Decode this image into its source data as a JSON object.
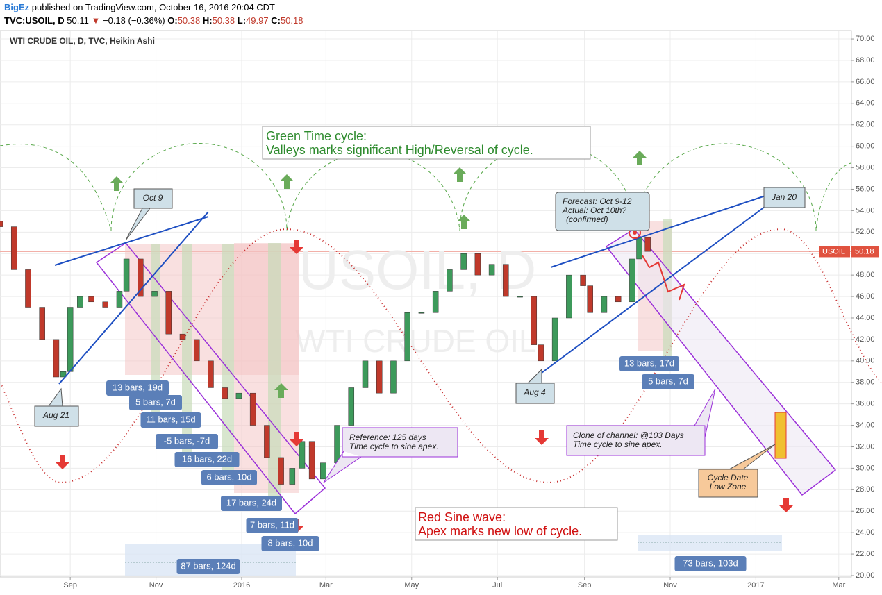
{
  "header": {
    "author": "BigEz",
    "published": "published on TradingView.com, October 16, 2016 20:04 CDT",
    "symbol": "TVC:USOIL, D",
    "last": 50.11,
    "change": "−0.18 (−0.36%)",
    "open_label": "O:",
    "open": 50.38,
    "high_label": "H:",
    "high": 50.38,
    "low_label": "L:",
    "low": 49.97,
    "close_label": "C:",
    "close": 50.18
  },
  "chart_data": {
    "type": "candlestick",
    "title": "WTI CRUDE OIL, D, TVC, Heikin Ashi",
    "watermark": [
      "USOIL, D",
      "WTI CRUDE OIL"
    ],
    "up_color": "#3d9a5b",
    "down_color": "#c0392b",
    "grid": true,
    "last_price_label": "USOIL",
    "last_price": 50.18,
    "xlim": [
      -50,
      556
    ],
    "ylim": [
      19.87,
      70.78
    ],
    "xticks": [
      {
        "value": 0,
        "label": "Sep"
      },
      {
        "value": 61,
        "label": "Nov"
      },
      {
        "value": 122,
        "label": "2016"
      },
      {
        "value": 182,
        "label": "Mar"
      },
      {
        "value": 243,
        "label": "May"
      },
      {
        "value": 304,
        "label": "Jul"
      },
      {
        "value": 366,
        "label": "Sep"
      },
      {
        "value": 427,
        "label": "Nov"
      },
      {
        "value": 488,
        "label": "2017"
      },
      {
        "value": 547,
        "label": "Mar"
      }
    ],
    "yticks": [
      {
        "value": 20,
        "label": "20.00"
      },
      {
        "value": 22,
        "label": "22.00"
      },
      {
        "value": 24,
        "label": "24.00"
      },
      {
        "value": 26,
        "label": "26.00"
      },
      {
        "value": 28,
        "label": "28.00"
      },
      {
        "value": 30,
        "label": "30.00"
      },
      {
        "value": 32,
        "label": "32.00"
      },
      {
        "value": 34,
        "label": "34.00"
      },
      {
        "value": 36,
        "label": "36.00"
      },
      {
        "value": 38,
        "label": "38.00"
      },
      {
        "value": 40,
        "label": "40.00"
      },
      {
        "value": 42,
        "label": "42.00"
      },
      {
        "value": 44,
        "label": "44.00"
      },
      {
        "value": 46,
        "label": "46.00"
      },
      {
        "value": 48,
        "label": "48.00"
      },
      {
        "value": 50,
        "label": "50.00"
      },
      {
        "value": 52,
        "label": "52.00"
      },
      {
        "value": 54,
        "label": "54.00"
      },
      {
        "value": 56,
        "label": "56.00"
      },
      {
        "value": 58,
        "label": "58.00"
      },
      {
        "value": 60,
        "label": "60.00"
      },
      {
        "value": 62,
        "label": "62.00"
      },
      {
        "value": 64,
        "label": "64.00"
      },
      {
        "value": 66,
        "label": "66.00"
      },
      {
        "value": 68,
        "label": "68.00"
      },
      {
        "value": 70,
        "label": "70.00"
      }
    ],
    "series": [
      {
        "name": "USOIL",
        "x": [
          -50,
          -40,
          -30,
          -20,
          -10,
          -5,
          0,
          7,
          15,
          25,
          35,
          40,
          50,
          60,
          70,
          80,
          90,
          100,
          110,
          120,
          130,
          140,
          150,
          158,
          165,
          172,
          180,
          190,
          200,
          210,
          220,
          230,
          240,
          250,
          260,
          270,
          280,
          290,
          300,
          310,
          320,
          330,
          335,
          345,
          355,
          365,
          370,
          380,
          390,
          400,
          405,
          411
        ],
        "open": [
          53,
          52.5,
          48.5,
          45,
          42,
          38.5,
          39,
          45,
          46,
          45.5,
          45,
          46.5,
          49.5,
          46,
          46.5,
          42.5,
          42,
          40,
          37.5,
          36.5,
          37,
          34,
          31,
          28.5,
          30,
          32.5,
          29,
          30.5,
          34,
          37.5,
          40,
          37,
          40,
          44.5,
          44.5,
          46.5,
          48.5,
          50,
          48,
          49,
          46,
          46,
          41.5,
          40,
          44,
          48,
          47,
          44.5,
          46,
          45.5,
          49.5,
          51.5
        ],
        "close": [
          52.5,
          48.5,
          45,
          42,
          38.5,
          39,
          45,
          46,
          45.5,
          45,
          46.5,
          49.5,
          46,
          46.5,
          42.5,
          42,
          40,
          37.5,
          36.5,
          37,
          34,
          31,
          28.5,
          30,
          32.5,
          29,
          30.5,
          34,
          37.5,
          40,
          37,
          40,
          44.5,
          44.5,
          46.5,
          48.5,
          50,
          48,
          49,
          46,
          46,
          41.5,
          40,
          44,
          48,
          47,
          44.5,
          46,
          45.5,
          49.5,
          51.5,
          50.2
        ]
      }
    ],
    "bar_counts": [
      "13 bars, 19d",
      "5 bars, 7d",
      "11 bars, 15d",
      "-5 bars, -7d",
      "16 bars, 22d",
      "6 bars, 10d",
      "17 bars, 24d",
      "7 bars, 11d",
      "8 bars, 10d",
      "87 bars, 124d",
      "13 bars, 17d",
      "5 bars, 7d",
      "73 bars, 103d"
    ],
    "callouts": [
      "Oct 9",
      "Aug 21",
      "Aug 4",
      "Jan 20"
    ],
    "forecast": [
      "Forecast: Oct 9-12",
      "Actual: Oct 10th?",
      "(confirmed)"
    ],
    "reference": [
      "Reference: 125 days",
      "Time cycle to sine apex."
    ],
    "clone": [
      "Clone of channel: @103 Days",
      "Time cycle to sine apex."
    ],
    "cycle_low": [
      "Cycle Date",
      "Low Zone"
    ],
    "green_note": [
      "Green Time cycle:",
      "Valleys marks significant High/Reversal of cycle."
    ],
    "red_note": [
      "Red Sine wave:",
      "Apex marks new low of cycle."
    ]
  }
}
